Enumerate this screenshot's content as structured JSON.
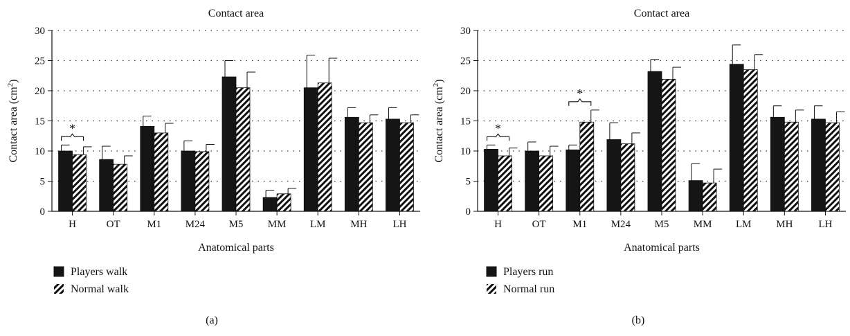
{
  "chart_data": [
    {
      "type": "bar",
      "panel_label": "(a)",
      "title": "Contact area",
      "xlabel": "Anatomical parts",
      "ylabel": "Contact area (cm",
      "ylabel_sup": "2",
      "ylabel_end": ")",
      "ylim": [
        0,
        30
      ],
      "yticks": [
        "0",
        "5",
        "10",
        "15",
        "20",
        "25",
        "30"
      ],
      "grid": "dotted horizontal",
      "legend_position": "bottom-left",
      "categories": [
        "H",
        "OT",
        "M1",
        "M24",
        "M5",
        "MM",
        "LM",
        "MH",
        "LH"
      ],
      "series": [
        {
          "name": "Players walk",
          "fill": "solid",
          "values": [
            10.0,
            8.6,
            14.1,
            10.0,
            22.3,
            2.3,
            20.5,
            15.6,
            15.3
          ],
          "errors": [
            1.0,
            2.2,
            1.7,
            1.7,
            2.7,
            1.2,
            5.4,
            1.6,
            1.9
          ]
        },
        {
          "name": "Normal walk",
          "fill": "hatched",
          "values": [
            9.4,
            7.8,
            13.0,
            9.9,
            20.5,
            2.9,
            21.3,
            14.7,
            14.7
          ],
          "errors": [
            1.3,
            1.4,
            1.6,
            1.2,
            2.6,
            0.9,
            4.1,
            1.3,
            1.3
          ]
        }
      ],
      "annotations": [
        {
          "text": "*",
          "category": "H"
        }
      ]
    },
    {
      "type": "bar",
      "panel_label": "(b)",
      "title": "Contact area",
      "xlabel": "Anatomical parts",
      "ylabel": "Contact area (cm",
      "ylabel_sup": "2",
      "ylabel_end": ")",
      "ylim": [
        0,
        30
      ],
      "yticks": [
        "0",
        "5",
        "10",
        "15",
        "20",
        "25",
        "30"
      ],
      "grid": "dotted horizontal",
      "legend_position": "bottom-left",
      "categories": [
        "H",
        "OT",
        "M1",
        "M24",
        "M5",
        "MM",
        "LM",
        "MH",
        "LH"
      ],
      "series": [
        {
          "name": "Players run",
          "fill": "solid",
          "values": [
            10.3,
            10.0,
            10.2,
            11.9,
            23.2,
            5.1,
            24.4,
            15.6,
            15.3
          ],
          "errors": [
            0.7,
            1.5,
            0.8,
            2.8,
            2.0,
            2.8,
            3.2,
            1.9,
            2.2
          ]
        },
        {
          "name": "Normal run",
          "fill": "hatched",
          "values": [
            9.2,
            9.2,
            14.8,
            11.2,
            21.9,
            4.7,
            23.5,
            14.8,
            14.7
          ],
          "errors": [
            1.3,
            1.6,
            2.0,
            1.8,
            2.0,
            2.3,
            2.5,
            2.0,
            1.8
          ]
        }
      ],
      "annotations": [
        {
          "text": "*",
          "category": "H"
        },
        {
          "text": "*",
          "category": "M1"
        }
      ]
    }
  ]
}
